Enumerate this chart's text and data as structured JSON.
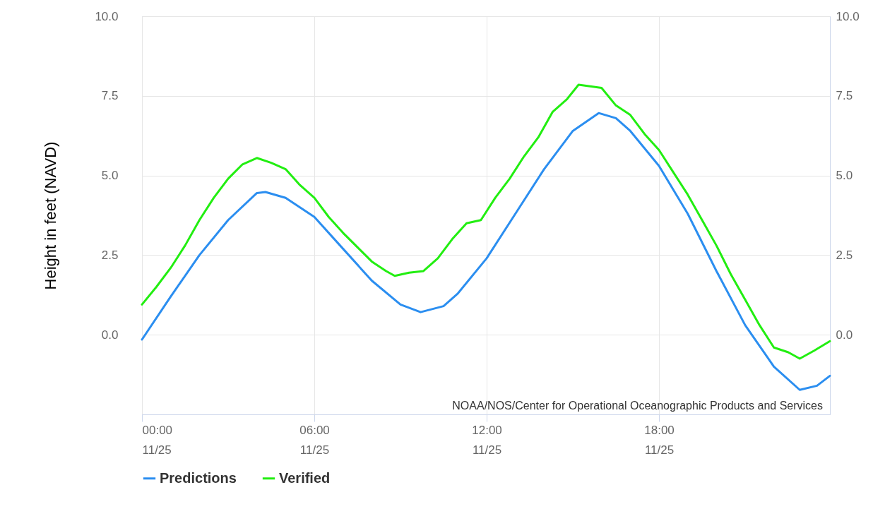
{
  "chart_data": {
    "type": "line",
    "ylabel": "Height in feet (NAVD)",
    "xlim": [
      "--11-25T00:00",
      "--11-25T23:57"
    ],
    "xticks": [
      {
        "value": "--11-25T00:00",
        "label": "00:00\n11/25"
      },
      {
        "value": "--11-25T06:00",
        "label": "06:00\n11/25"
      },
      {
        "value": "--11-25T12:00",
        "label": "12:00\n11/25"
      },
      {
        "value": "--11-25T18:00",
        "label": "18:00\n11/25"
      }
    ],
    "ylim": [
      -2.5,
      10
    ],
    "yticks": [
      {
        "value": -2.5,
        "label": null
      },
      {
        "value": 0,
        "label": "0.0"
      },
      {
        "value": 2.5,
        "label": "2.5"
      },
      {
        "value": 5,
        "label": "5.0"
      },
      {
        "value": 7.5,
        "label": "7.5"
      },
      {
        "value": 10,
        "label": "10.0"
      }
    ],
    "y2lim": [
      -2.5,
      10
    ],
    "y2ticks": [
      {
        "value": -2.5,
        "label": null
      },
      {
        "value": 0,
        "label": "0.0"
      },
      {
        "value": 2.5,
        "label": "2.5"
      },
      {
        "value": 5,
        "label": "5.0"
      },
      {
        "value": 7.5,
        "label": "7.5"
      },
      {
        "value": 10,
        "label": "10.0"
      }
    ],
    "grid": true,
    "legend": "bottom left",
    "marker": "none",
    "line_style": "solid",
    "annotations": [
      "NOAA/NOS/Center for Operational Oceanographic Products and Services"
    ],
    "series": [
      {
        "name": "Predictions",
        "color": "#2b8ef0",
        "x": [
          "--11-25T00:00",
          "--11-25T01:00",
          "--11-25T02:00",
          "--11-25T03:00",
          "--11-25T04:00",
          "--11-25T04:18",
          "--11-25T05:00",
          "--11-25T06:00",
          "--11-25T07:00",
          "--11-25T08:00",
          "--11-25T09:00",
          "--11-25T09:42",
          "--11-25T10:30",
          "--11-25T11:00",
          "--11-25T12:00",
          "--11-25T13:00",
          "--11-25T14:00",
          "--11-25T15:00",
          "--11-25T15:54",
          "--11-25T16:30",
          "--11-25T17:00",
          "--11-25T18:00",
          "--11-25T19:00",
          "--11-25T20:00",
          "--11-25T21:00",
          "--11-25T22:00",
          "--11-25T22:54",
          "--11-25T23:30",
          "--11-25T23:57"
        ],
        "values": [
          -0.15,
          1.2,
          2.5,
          3.6,
          4.45,
          4.48,
          4.3,
          3.7,
          2.7,
          1.7,
          0.95,
          0.71,
          0.9,
          1.3,
          2.4,
          3.8,
          5.2,
          6.4,
          6.96,
          6.8,
          6.4,
          5.3,
          3.8,
          2.0,
          0.3,
          -1.0,
          -1.73,
          -1.6,
          -1.29
        ]
      },
      {
        "name": "Verified",
        "color": "#22ee11",
        "x": [
          "--11-25T00:00",
          "--11-25T00:30",
          "--11-25T01:00",
          "--11-25T01:30",
          "--11-25T02:00",
          "--11-25T02:30",
          "--11-25T03:00",
          "--11-25T03:30",
          "--11-25T04:00",
          "--11-25T04:30",
          "--11-25T05:00",
          "--11-25T05:30",
          "--11-25T06:00",
          "--11-25T06:30",
          "--11-25T07:00",
          "--11-25T07:30",
          "--11-25T08:00",
          "--11-25T08:30",
          "--11-25T08:48",
          "--11-25T09:18",
          "--11-25T09:48",
          "--11-25T10:18",
          "--11-25T10:48",
          "--11-25T11:18",
          "--11-25T11:48",
          "--11-25T12:18",
          "--11-25T12:48",
          "--11-25T13:18",
          "--11-25T13:48",
          "--11-25T14:18",
          "--11-25T14:48",
          "--11-25T15:12",
          "--11-25T15:36",
          "--11-25T16:00",
          "--11-25T16:30",
          "--11-25T17:00",
          "--11-25T17:30",
          "--11-25T18:00",
          "--11-25T18:30",
          "--11-25T19:00",
          "--11-25T19:30",
          "--11-25T20:00",
          "--11-25T20:30",
          "--11-25T21:00",
          "--11-25T21:30",
          "--11-25T22:00",
          "--11-25T22:30",
          "--11-25T22:54",
          "--11-25T23:24",
          "--11-25T23:57"
        ],
        "values": [
          0.95,
          1.5,
          2.1,
          2.8,
          3.6,
          4.3,
          4.9,
          5.35,
          5.55,
          5.4,
          5.2,
          4.7,
          4.3,
          3.7,
          3.2,
          2.75,
          2.3,
          2.0,
          1.85,
          1.95,
          2.0,
          2.4,
          3.0,
          3.5,
          3.6,
          4.3,
          4.9,
          5.6,
          6.2,
          7.0,
          7.4,
          7.85,
          7.8,
          7.75,
          7.2,
          6.9,
          6.3,
          5.8,
          5.1,
          4.4,
          3.6,
          2.8,
          1.9,
          1.1,
          0.3,
          -0.4,
          -0.55,
          -0.75,
          -0.5,
          -0.2
        ]
      }
    ]
  }
}
